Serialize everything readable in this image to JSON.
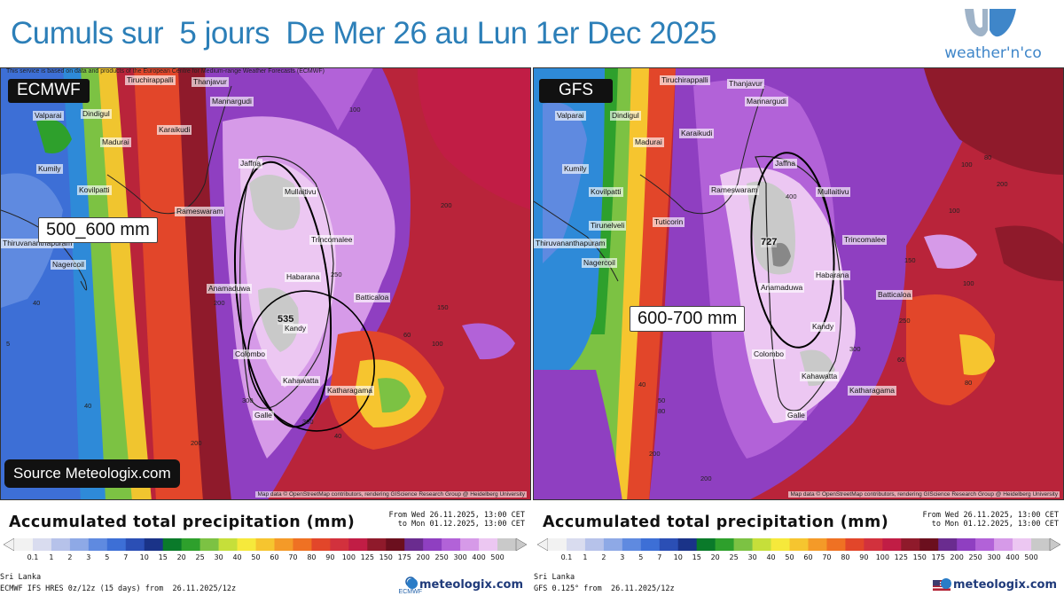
{
  "header": {
    "title": "Cumuls sur  5 jours  De Mer 26 au Lun 1er Dec 2025",
    "brand": "weather'n'co",
    "brand_logo_icon": "weatherandco-logo-icon"
  },
  "colors": {
    "title": "#2c7fb8",
    "brand": "#3f86c9"
  },
  "panels": [
    {
      "model": "ECMWF",
      "notice": "This service is based on data and products of the European Centre for Medium-range Weather Forecasts (ECMWF)",
      "amount_label": "500_600 mm",
      "peak_value": "535",
      "source": "Source Meteologix.com",
      "attribution": "Map data © OpenStreetMap contributors, rendering GIScience Research Group @ Heidelberg University",
      "cities": [
        "Tiruchirappalli",
        "Thanjavur",
        "Mannargudi",
        "Valparai",
        "Dindigul",
        "Madurai",
        "Karaikudi",
        "Kumily",
        "Kovilpatti",
        "Rameswaram",
        "Thiruvananthapuram",
        "Nagercoil",
        "Jaffna",
        "Mullaitivu",
        "Trincomalee",
        "Anamaduwa",
        "Habarana",
        "Batticaloa",
        "Kandy",
        "Colombo",
        "Kahawatta",
        "Katharagama",
        "Galle"
      ],
      "values": [
        "100",
        "200",
        "150",
        "60",
        "100",
        "40",
        "5",
        "40",
        "250",
        "200",
        "300",
        "40",
        "300",
        "200"
      ]
    },
    {
      "model": "GFS",
      "amount_label": "600-700 mm",
      "peak_value": "727",
      "attribution": "Map data © OpenStreetMap contributors, rendering GIScience Research Group @ Heidelberg University",
      "cities": [
        "Tiruchirappalli",
        "Thanjavur",
        "Mannargudi",
        "Valparai",
        "Dindigul",
        "Madurai",
        "Karaikudi",
        "Kumily",
        "Kovilpatti",
        "Rameswaram",
        "Tirunelveli",
        "Tuticorin",
        "Thiruvananthapuram",
        "Nagercoil",
        "Jaffna",
        "Mullaitivu",
        "Trincomalee",
        "Anamaduwa",
        "Habarana",
        "Batticaloa",
        "Kandy",
        "Colombo",
        "Kahawatta",
        "Katharagama",
        "Galle"
      ],
      "values": [
        "100",
        "80",
        "200",
        "100",
        "150",
        "40",
        "50",
        "80",
        "300",
        "200",
        "100",
        "400",
        "200",
        "80",
        "250",
        "60"
      ]
    }
  ],
  "legends": [
    {
      "title": "Accumulated total precipitation (mm)",
      "from": "From Wed 26.11.2025, 13:00 CET",
      "to": "to Mon 01.12.2025, 13:00 CET",
      "region": "Sri Lanka",
      "model_line": "ECMWF IFS HRES 0z/12z (15 days) from  26.11.2025/12z",
      "model_logo": "ECMWF",
      "brand": "meteologix.com"
    },
    {
      "title": "Accumulated total precipitation (mm)",
      "from": "From Wed 26.11.2025, 13:00 CET",
      "to": "to Mon 01.12.2025, 13:00 CET",
      "region": "Sri Lanka",
      "model_line": "GFS 0.125° from  26.11.2025/12z",
      "model_logo": "us-flag-icon",
      "brand": "meteologix.com"
    }
  ],
  "scale": {
    "ticks": [
      "0.1",
      "1",
      "2",
      "3",
      "5",
      "7",
      "10",
      "15",
      "20",
      "25",
      "30",
      "40",
      "50",
      "60",
      "70",
      "80",
      "90",
      "100",
      "125",
      "150",
      "175",
      "200",
      "250",
      "300",
      "400",
      "500"
    ],
    "colors": [
      "#f2f2f2",
      "#d9dcef",
      "#b6c2ea",
      "#8ea9e6",
      "#5f8ae0",
      "#3d6fd6",
      "#2b4fb5",
      "#1a3388",
      "#0a7a2a",
      "#2ea02c",
      "#7cc243",
      "#c6df3a",
      "#f6e93b",
      "#f6c52f",
      "#f49a28",
      "#ef7123",
      "#e2462a",
      "#d2313d",
      "#c11d45",
      "#8f1a2b",
      "#6b0f1e",
      "#6a2c8f",
      "#8f3fc1",
      "#b262d8",
      "#d69ae8",
      "#ecc7f2",
      "#c9c9c9"
    ]
  }
}
